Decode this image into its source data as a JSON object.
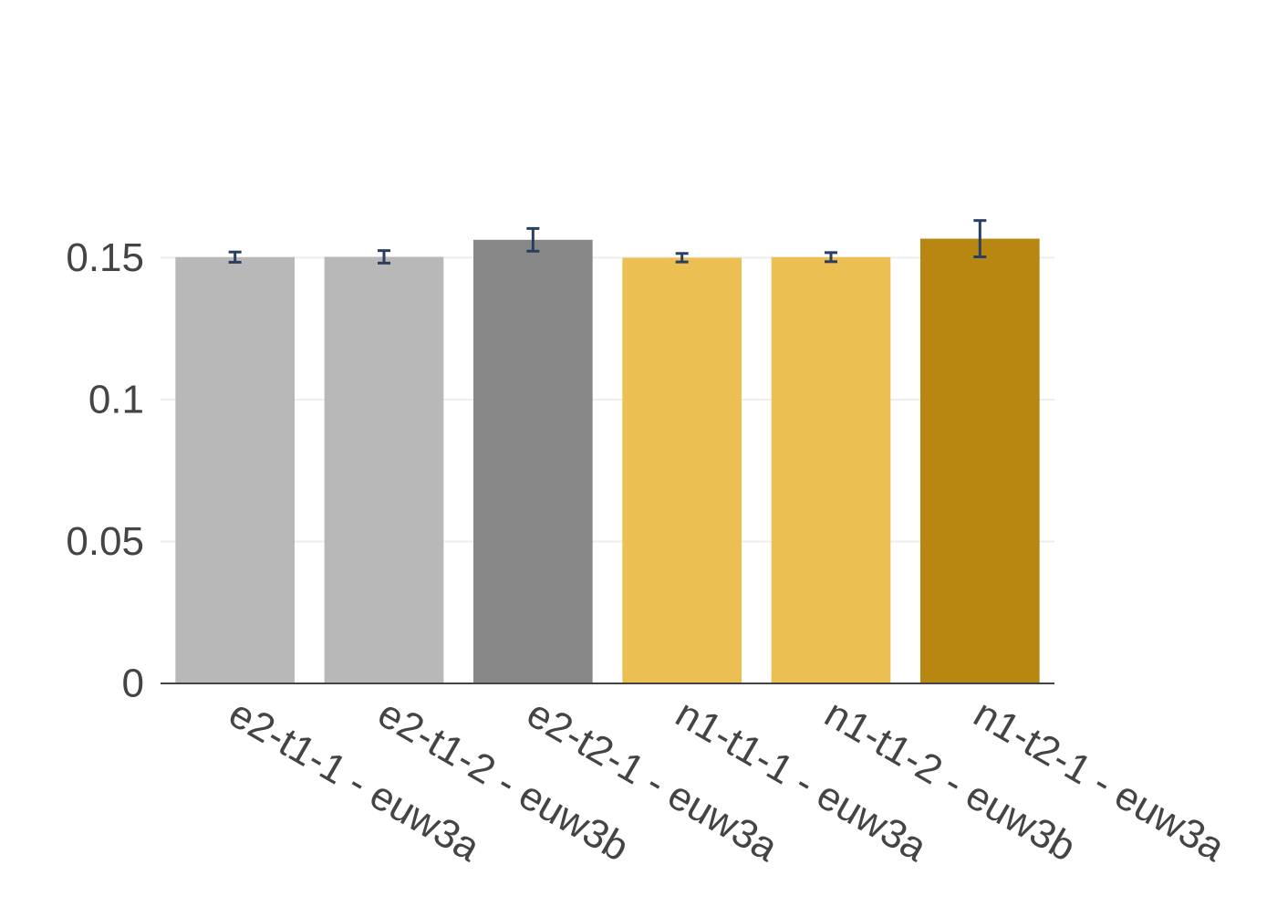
{
  "chart_data": {
    "type": "bar",
    "title": "",
    "xlabel": "",
    "ylabel": "",
    "categories": [
      "e2-t1-1 - euw3a",
      "e2-t1-2 - euw3b",
      "e2-t2-1 - euw3a",
      "n1-t1-1 - euw3a",
      "n1-t1-2 - euw3b",
      "n1-t2-1 - euw3a"
    ],
    "values": [
      0.1502,
      0.1503,
      0.1563,
      0.15,
      0.1502,
      0.1567
    ],
    "error": [
      0.0018,
      0.0022,
      0.004,
      0.0015,
      0.0016,
      0.0064
    ],
    "bar_colors": [
      "#b8b8b8",
      "#b8b8b8",
      "#888888",
      "#ecbf52",
      "#ecbf52",
      "#b78712"
    ],
    "error_color": "#2a3f5f",
    "ylim": [
      0,
      0.1765
    ],
    "yticks": [
      0,
      0.05,
      0.1,
      0.15
    ],
    "ytick_labels": [
      "0",
      "0.05",
      "0.1",
      "0.15"
    ],
    "grid": true,
    "grid_color": "#eeeeee",
    "axis_color": "#444444",
    "legend": "none"
  }
}
